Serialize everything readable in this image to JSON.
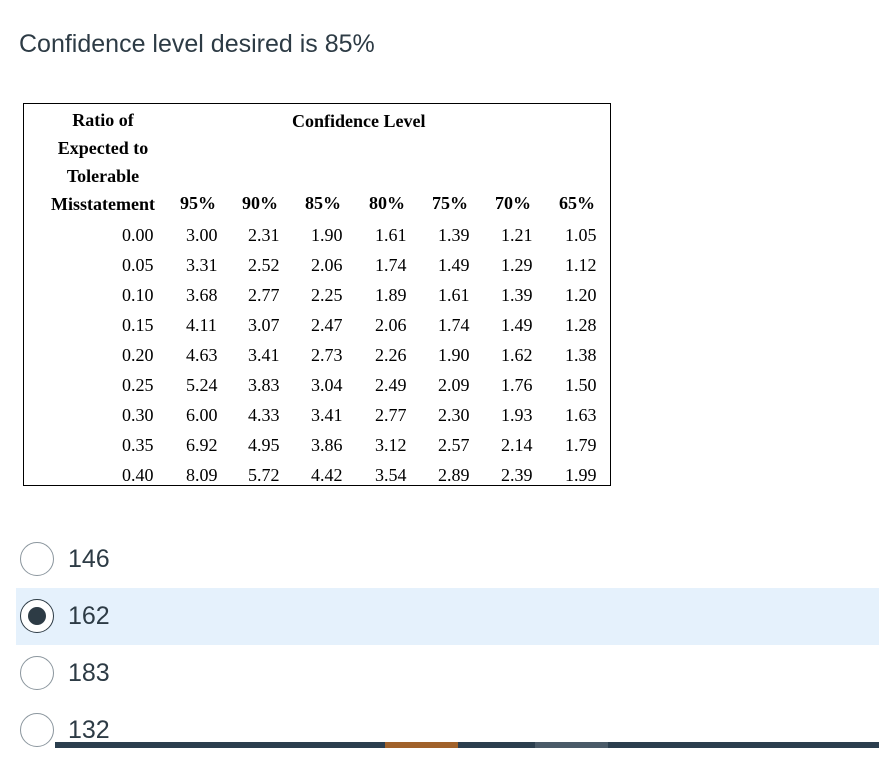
{
  "question": {
    "text": "Confidence level desired is 85%"
  },
  "table": {
    "ratio_header_lines": [
      "Ratio of",
      "Expected to",
      "Tolerable",
      "Misstatement"
    ],
    "confidence_header": "Confidence Level",
    "columns": [
      "95%",
      "90%",
      "85%",
      "80%",
      "75%",
      "70%",
      "65%"
    ],
    "rows": [
      [
        "0.00",
        "3.00",
        "2.31",
        "1.90",
        "1.61",
        "1.39",
        "1.21",
        "1.05"
      ],
      [
        "0.05",
        "3.31",
        "2.52",
        "2.06",
        "1.74",
        "1.49",
        "1.29",
        "1.12"
      ],
      [
        "0.10",
        "3.68",
        "2.77",
        "2.25",
        "1.89",
        "1.61",
        "1.39",
        "1.20"
      ],
      [
        "0.15",
        "4.11",
        "3.07",
        "2.47",
        "2.06",
        "1.74",
        "1.49",
        "1.28"
      ],
      [
        "0.20",
        "4.63",
        "3.41",
        "2.73",
        "2.26",
        "1.90",
        "1.62",
        "1.38"
      ],
      [
        "0.25",
        "5.24",
        "3.83",
        "3.04",
        "2.49",
        "2.09",
        "1.76",
        "1.50"
      ],
      [
        "0.30",
        "6.00",
        "4.33",
        "3.41",
        "2.77",
        "2.30",
        "1.93",
        "1.63"
      ],
      [
        "0.35",
        "6.92",
        "4.95",
        "3.86",
        "3.12",
        "2.57",
        "2.14",
        "1.79"
      ],
      [
        "0.40",
        "8.09",
        "5.72",
        "4.42",
        "3.54",
        "2.89",
        "2.39",
        "1.99"
      ]
    ]
  },
  "options": [
    {
      "label": "146",
      "selected": false
    },
    {
      "label": "162",
      "selected": true
    },
    {
      "label": "183",
      "selected": false
    },
    {
      "label": "132",
      "selected": false
    }
  ],
  "colors": {
    "text": "#2d3b45",
    "selected_bg": "#e5f1fc",
    "radio_border": "#8b969e",
    "bar_dark": "#2b3e4e",
    "bar_accent": "#a0612a",
    "bar_mid": "#4a5a68"
  }
}
